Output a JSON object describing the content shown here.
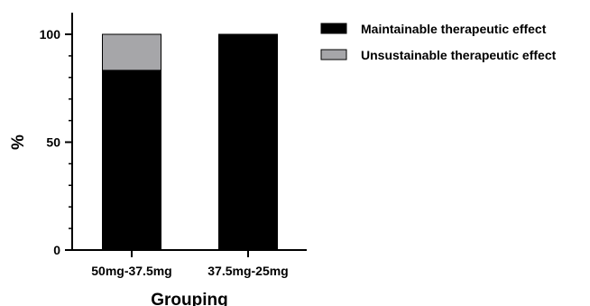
{
  "colors": {
    "background": "#ffffff",
    "axis": "#000000"
  },
  "chart_data": {
    "type": "bar",
    "stacked": true,
    "title": "",
    "xlabel": "Grouping",
    "ylabel": "%",
    "ylim": [
      0,
      110
    ],
    "yticks": [
      0,
      50,
      100
    ],
    "ytick_labels": [
      "0",
      "50",
      "100"
    ],
    "minor_yticks": [
      10,
      20,
      30,
      40,
      60,
      70,
      80,
      90
    ],
    "grid": false,
    "legend_position": "top-right",
    "categories": [
      "50mg-37.5mg",
      "37.5mg-25mg"
    ],
    "series": [
      {
        "name": "Maintainable therapeutic effect",
        "values": [
          83.3,
          100
        ],
        "color": "#000000"
      },
      {
        "name": "Unsustainable therapeutic effect",
        "values": [
          16.7,
          0
        ],
        "color": "#a6a6a9"
      }
    ]
  }
}
